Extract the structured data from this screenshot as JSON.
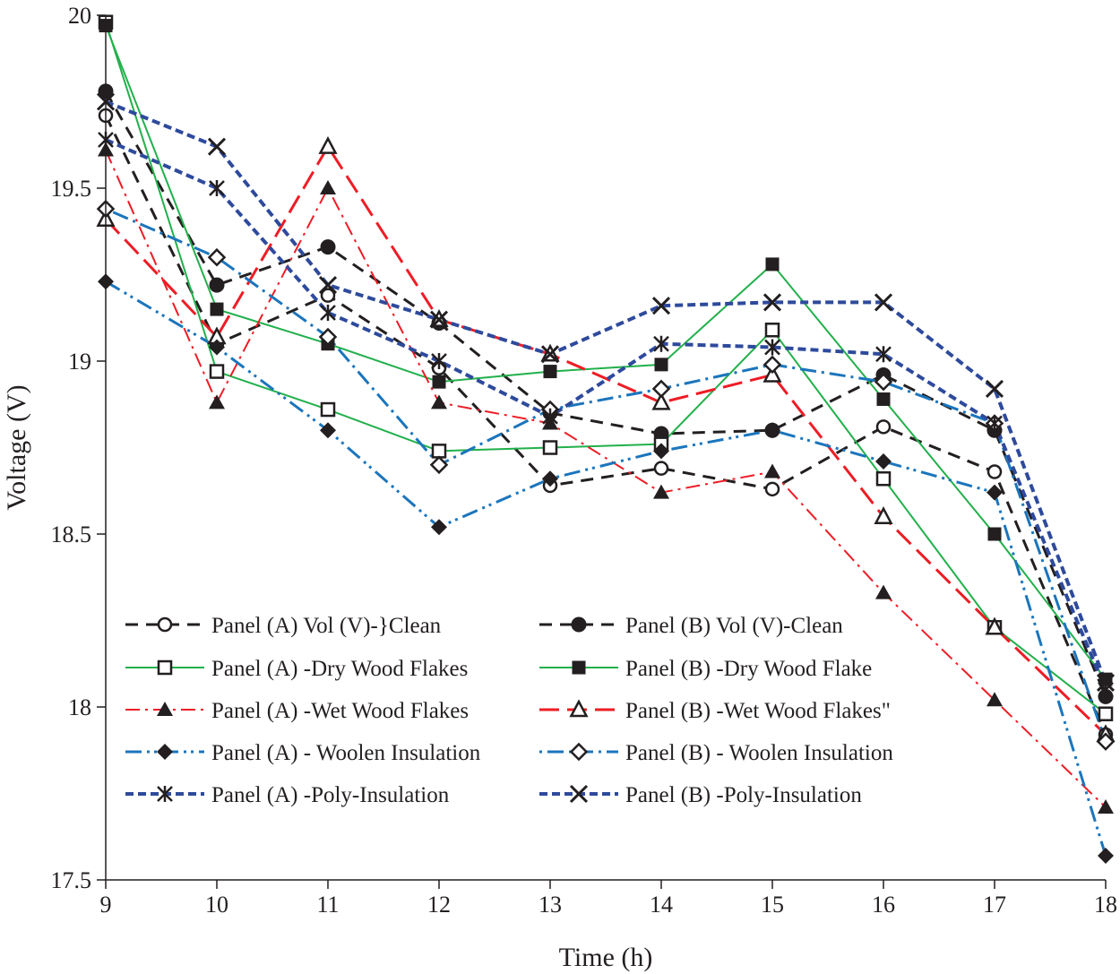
{
  "chart_data": {
    "type": "line",
    "title": "",
    "xlabel": "Time (h)",
    "ylabel": "Voltage (V)",
    "xlim": [
      9,
      18
    ],
    "ylim": [
      17.5,
      20
    ],
    "x": [
      9,
      10,
      11,
      12,
      13,
      14,
      15,
      16,
      17,
      18
    ],
    "x_ticks": [
      "9",
      "10",
      "11",
      "12",
      "13",
      "14",
      "15",
      "16",
      "17",
      "18"
    ],
    "y_ticks": [
      "17.5",
      "18",
      "18.5",
      "19",
      "19.5",
      "20"
    ],
    "y_tick_values": [
      17.5,
      18,
      18.5,
      19,
      19.5,
      20
    ],
    "legend_position": "lower-left inside plot",
    "series": [
      {
        "name": "Panel (A) Vol (V)-}Clean",
        "color": "#231f20",
        "dash": "dash",
        "width": 3,
        "marker": "circle-open",
        "values": [
          19.71,
          19.05,
          19.19,
          18.98,
          18.64,
          18.69,
          18.63,
          18.81,
          18.68,
          17.92
        ]
      },
      {
        "name": "Panel (B) Vol (V)-Clean",
        "color": "#231f20",
        "dash": "dash",
        "width": 3,
        "marker": "circle-filled",
        "values": [
          19.78,
          19.22,
          19.33,
          19.11,
          18.85,
          18.79,
          18.8,
          18.96,
          18.8,
          18.03
        ]
      },
      {
        "name": "Panel (A) -Dry Wood Flakes",
        "color": "#22b04b",
        "dash": "solid",
        "width": 2,
        "marker": "square-open",
        "values": [
          19.98,
          18.97,
          18.86,
          18.74,
          18.75,
          18.76,
          19.09,
          18.66,
          18.23,
          17.98
        ]
      },
      {
        "name": "Panel (B) -Dry Wood Flake",
        "color": "#22b04b",
        "dash": "solid",
        "width": 2,
        "marker": "square-filled",
        "values": [
          19.97,
          19.15,
          19.05,
          18.94,
          18.97,
          18.99,
          19.28,
          18.89,
          18.5,
          18.08
        ]
      },
      {
        "name": "Panel (A) -Wet Wood Flakes",
        "color": "#ee1c25",
        "dash": "dashdot",
        "width": 2,
        "marker": "triangle-filled",
        "values": [
          19.61,
          18.88,
          19.5,
          18.88,
          18.82,
          18.62,
          18.68,
          18.33,
          18.02,
          17.71
        ]
      },
      {
        "name": "Panel (B) -Wet Wood Flakes\"",
        "color": "#ee1c25",
        "dash": "longdash",
        "width": 3,
        "marker": "triangle-open",
        "values": [
          19.41,
          19.07,
          19.62,
          19.12,
          19.02,
          18.88,
          18.96,
          18.55,
          18.23,
          17.92
        ]
      },
      {
        "name": "Panel (A) - Woolen Insulation",
        "color": "#1b75bc",
        "dash": "dashdotdot",
        "width": 3,
        "marker": "diamond-filled",
        "values": [
          19.23,
          19.04,
          18.8,
          18.52,
          18.66,
          18.74,
          18.8,
          18.71,
          18.62,
          17.57
        ]
      },
      {
        "name": "Panel (B) - Woolen Insulation",
        "color": "#1b75bc",
        "dash": "dotdash",
        "width": 3,
        "marker": "diamond-open",
        "values": [
          19.44,
          19.3,
          19.07,
          18.7,
          18.86,
          18.92,
          18.99,
          18.94,
          18.82,
          17.9
        ]
      },
      {
        "name": "Panel (A) -Poly-Insulation",
        "color": "#2e4a9c",
        "dash": "densedash",
        "width": 4,
        "marker": "star",
        "values": [
          19.64,
          19.5,
          19.14,
          19.0,
          18.84,
          19.05,
          19.04,
          19.02,
          18.82,
          18.05
        ]
      },
      {
        "name": "Panel (B) -Poly-Insulation",
        "color": "#2e4a9c",
        "dash": "densedash",
        "width": 4,
        "marker": "x",
        "values": [
          19.75,
          19.62,
          19.22,
          19.12,
          19.02,
          19.16,
          19.17,
          19.17,
          18.92,
          18.07
        ]
      }
    ]
  }
}
